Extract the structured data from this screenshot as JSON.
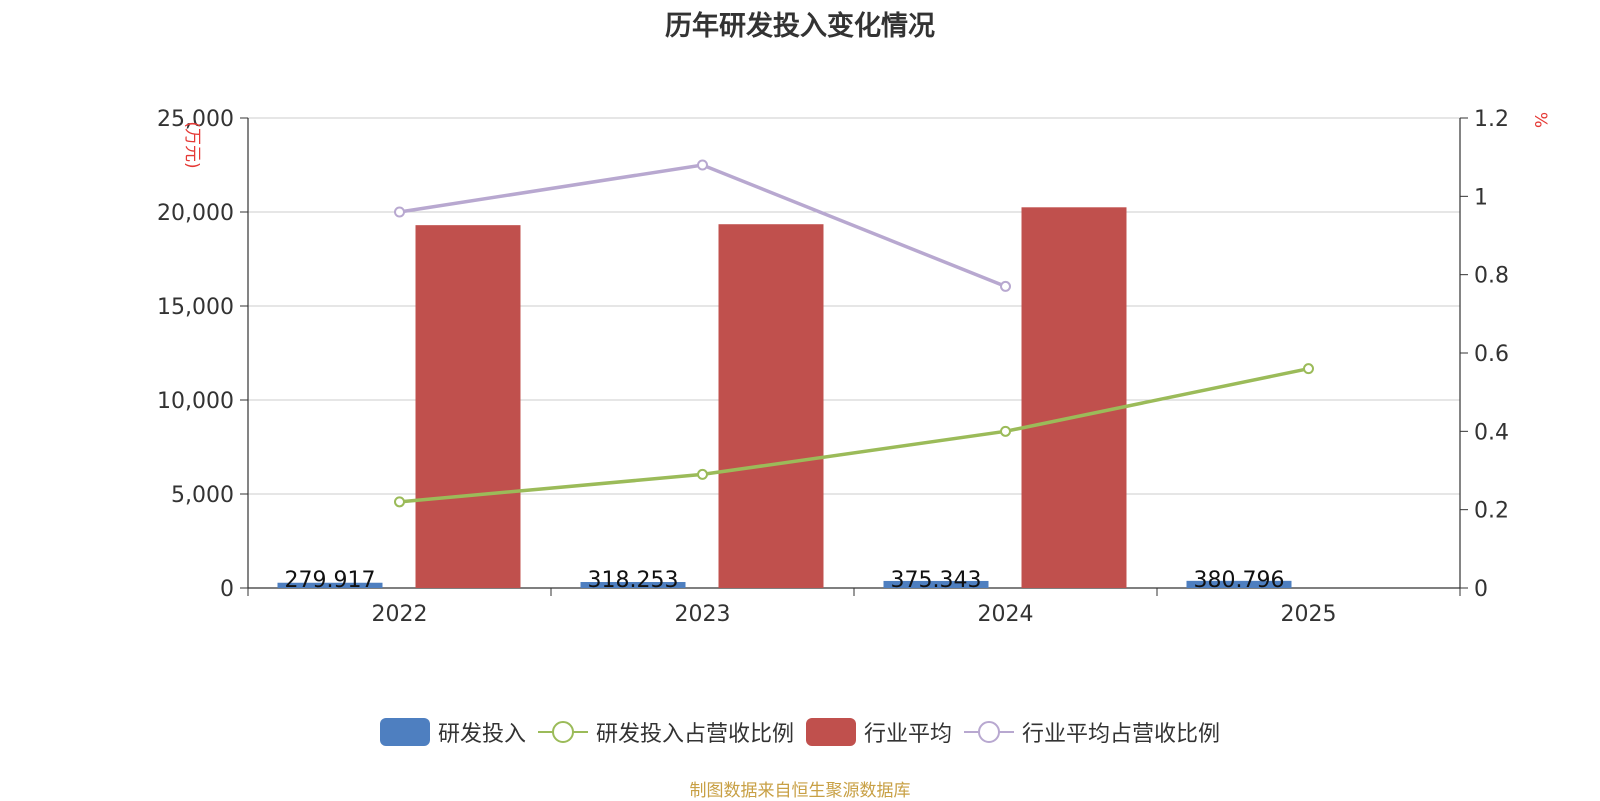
{
  "chart_data": {
    "type": "bar",
    "title": "历年研发投入变化情况",
    "categories": [
      "2022",
      "2023",
      "2024",
      "2025"
    ],
    "y_left": {
      "label": "(万元)",
      "ylim": [
        0,
        25000
      ],
      "ticks": [
        "0",
        "5,000",
        "10,000",
        "15,000",
        "20,000",
        "25,000"
      ]
    },
    "y_right": {
      "label": "%",
      "ylim": [
        0,
        1.2
      ],
      "ticks": [
        "0",
        "0.2",
        "0.4",
        "0.6",
        "0.8",
        "1",
        "1.2"
      ]
    },
    "series": [
      {
        "name": "研发投入",
        "type": "bar",
        "axis": "left",
        "color": "#4e7fc0",
        "values": [
          279.917,
          318.253,
          375.343,
          380.796
        ],
        "labels": [
          "279.917",
          "318.253",
          "375.343",
          "380.796"
        ]
      },
      {
        "name": "研发投入占营收比例",
        "type": "line",
        "axis": "right",
        "color": "#9bbb59",
        "values": [
          0.22,
          0.29,
          0.4,
          0.56
        ]
      },
      {
        "name": "行业平均",
        "type": "bar",
        "axis": "left",
        "color": "#c0504d",
        "values": [
          19300,
          19350,
          20250,
          null
        ]
      },
      {
        "name": "行业平均占营收比例",
        "type": "line",
        "axis": "right",
        "color": "#b8a8d0",
        "values": [
          0.96,
          1.08,
          0.77,
          null
        ]
      }
    ],
    "legend_position": "bottom",
    "grid": true
  },
  "source": "制图数据来自恒生聚源数据库"
}
